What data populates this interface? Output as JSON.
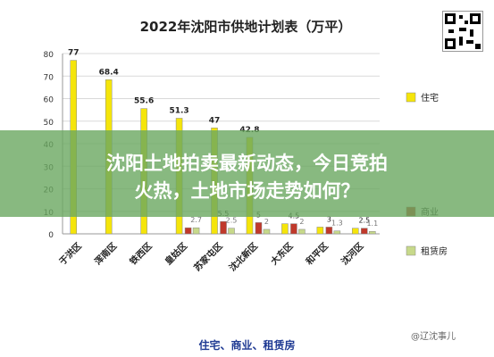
{
  "overlay": {
    "line1": "沈阳土地拍卖最新动态，今日竞拍",
    "line2": "火热，土地市场走势如何？"
  },
  "footer_text": "住宅、商业、租赁房",
  "watermark": "@辽沈事儿",
  "chart_data": {
    "type": "bar",
    "title": "2022年沈阳市供地计划表（万平）",
    "categories": [
      "于洪区",
      "浑南区",
      "铁西区",
      "皇姑区",
      "苏家屯区",
      "沈北新区",
      "大东区",
      "和平区",
      "沈河区"
    ],
    "ylim": [
      0,
      80
    ],
    "yticks": [
      0,
      10,
      20,
      30,
      40,
      50,
      60,
      70,
      80
    ],
    "legend_position": "right",
    "series": [
      {
        "name": "住宅",
        "color": "#f5e50a",
        "values": [
          77,
          68.4,
          55.6,
          51.3,
          47,
          42.8,
          4.5,
          3,
          2.5
        ]
      },
      {
        "name": "商业",
        "color": "#c0392b",
        "values": [
          null,
          null,
          null,
          2.7,
          5.5,
          5,
          4.5,
          3,
          2.5
        ]
      },
      {
        "name": "租赁房",
        "color": "#c7d98a",
        "values": [
          null,
          null,
          null,
          2.7,
          2.5,
          2,
          2,
          1.3,
          1.1
        ]
      }
    ],
    "data_labels": {
      "住宅": [
        "77",
        "68.4",
        "55.6",
        "51.3",
        "47",
        "42.8",
        "",
        "",
        ""
      ],
      "商业": [
        "",
        "",
        "",
        "",
        "5.5",
        "5",
        "4.5",
        "3",
        "2.5"
      ],
      "租赁房": [
        "",
        "",
        "",
        "2.7",
        "2.5",
        "2",
        "2",
        "1.3",
        "1.1"
      ]
    }
  }
}
